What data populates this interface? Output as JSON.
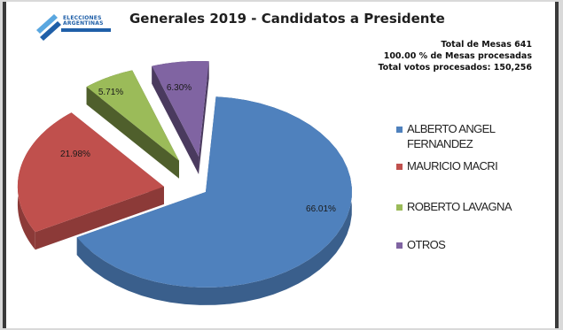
{
  "logo": {
    "line1": "ELECCIONES",
    "line2": "ARGENTINAS",
    "colors": {
      "primary": "#1f5fa8",
      "accent": "#5aa7e0"
    }
  },
  "stats": {
    "mesas": "Total de Mesas 641",
    "procesadas": "100.00 % de Mesas procesadas",
    "votos": "Total votos procesados: 150,256"
  },
  "chart_data": {
    "type": "pie",
    "title": "Generales 2019 - Candidatos a Presidente",
    "three_d": true,
    "exploded": true,
    "slices": [
      {
        "name": "ALBERTO ANGEL FERNANDEZ",
        "legend_lines": [
          "ALBERTO ANGEL",
          "FERNANDEZ"
        ],
        "value": 66.01,
        "label": "66.01%",
        "color": "#4f81bd",
        "side": "#3a5f8c"
      },
      {
        "name": "MAURICIO MACRI",
        "legend_lines": [
          "MAURICIO MACRI"
        ],
        "value": 21.98,
        "label": "21.98%",
        "color": "#c0504d",
        "side": "#8c3a38"
      },
      {
        "name": "ROBERTO LAVAGNA",
        "legend_lines": [
          "ROBERTO LAVAGNA"
        ],
        "value": 5.71,
        "label": "5.71%",
        "color": "#9bbb59",
        "side": "#4f5f2c"
      },
      {
        "name": "OTROS",
        "legend_lines": [
          "OTROS"
        ],
        "value": 6.3,
        "label": "6.30%",
        "color": "#8064a2",
        "side": "#4a3a5e"
      }
    ],
    "legend_position": "right"
  }
}
